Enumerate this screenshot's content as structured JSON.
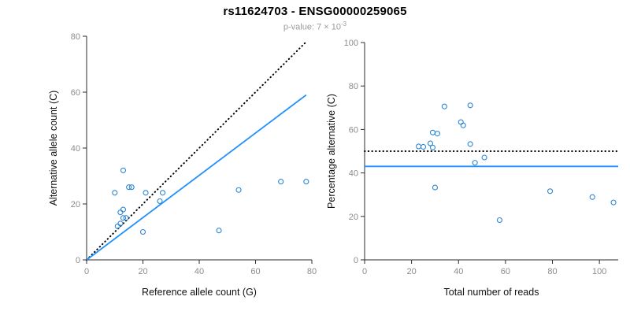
{
  "header": {
    "title": "rs11624703 - ENSG00000259065",
    "subtitle_prefix": "p-value: 7 × 10",
    "subtitle_exponent": "-3"
  },
  "colors": {
    "points": "#2E86D2",
    "fit_line": "#1E90FF",
    "identity_line": "#000000",
    "axis": "#2b2b2b",
    "tick_label": "#8c8c8c",
    "axis_label": "#111111"
  },
  "chart_data": [
    {
      "type": "scatter",
      "title": "",
      "xlabel": "Reference allele count (G)",
      "ylabel": "Alternative allele count (C)",
      "xlim": [
        0,
        80
      ],
      "ylim": [
        0,
        80
      ],
      "xticks": [
        0,
        20,
        40,
        60,
        80
      ],
      "yticks": [
        0,
        20,
        40,
        60,
        80
      ],
      "grid": false,
      "legend": "none",
      "points": [
        [
          10,
          24
        ],
        [
          13,
          32
        ],
        [
          15,
          26
        ],
        [
          16,
          26
        ],
        [
          12,
          17
        ],
        [
          13,
          18
        ],
        [
          13,
          15
        ],
        [
          14,
          15
        ],
        [
          12,
          13
        ],
        [
          11,
          12
        ],
        [
          20,
          10
        ],
        [
          21,
          24
        ],
        [
          26,
          21
        ],
        [
          27,
          24
        ],
        [
          47,
          10.5
        ],
        [
          54,
          25
        ],
        [
          69,
          28
        ],
        [
          78,
          28
        ]
      ],
      "lines": [
        {
          "name": "identity",
          "style": "dotted",
          "color": "#000000",
          "x": [
            0,
            78
          ],
          "y": [
            0,
            78
          ]
        },
        {
          "name": "fit",
          "style": "solid",
          "color": "#1E90FF",
          "x": [
            0,
            78
          ],
          "y": [
            0,
            59
          ]
        }
      ]
    },
    {
      "type": "scatter",
      "title": "",
      "xlabel": "Total number of reads",
      "ylabel": "Percentage alternative (C)",
      "xlim": [
        0,
        108
      ],
      "ylim": [
        0,
        100
      ],
      "xticks": [
        0,
        20,
        40,
        60,
        80,
        100
      ],
      "yticks": [
        0,
        20,
        40,
        60,
        80,
        100
      ],
      "grid": false,
      "legend": "none",
      "points": [
        [
          34,
          70.6
        ],
        [
          45,
          71.1
        ],
        [
          41,
          63.4
        ],
        [
          42,
          61.9
        ],
        [
          29,
          58.6
        ],
        [
          31,
          58.1
        ],
        [
          28,
          53.6
        ],
        [
          29,
          51.7
        ],
        [
          25,
          52.0
        ],
        [
          23,
          52.2
        ],
        [
          30,
          33.3
        ],
        [
          45,
          53.3
        ],
        [
          47,
          44.7
        ],
        [
          51,
          47.1
        ],
        [
          57.5,
          18.3
        ],
        [
          79,
          31.6
        ],
        [
          97,
          28.9
        ],
        [
          106,
          26.4
        ]
      ],
      "lines": [
        {
          "name": "expected-50pct",
          "style": "dotted",
          "color": "#000000",
          "x": [
            0,
            108
          ],
          "y": [
            50,
            50
          ]
        },
        {
          "name": "observed-mean",
          "style": "solid",
          "color": "#1E90FF",
          "x": [
            0,
            108
          ],
          "y": [
            43,
            43
          ]
        }
      ]
    }
  ]
}
